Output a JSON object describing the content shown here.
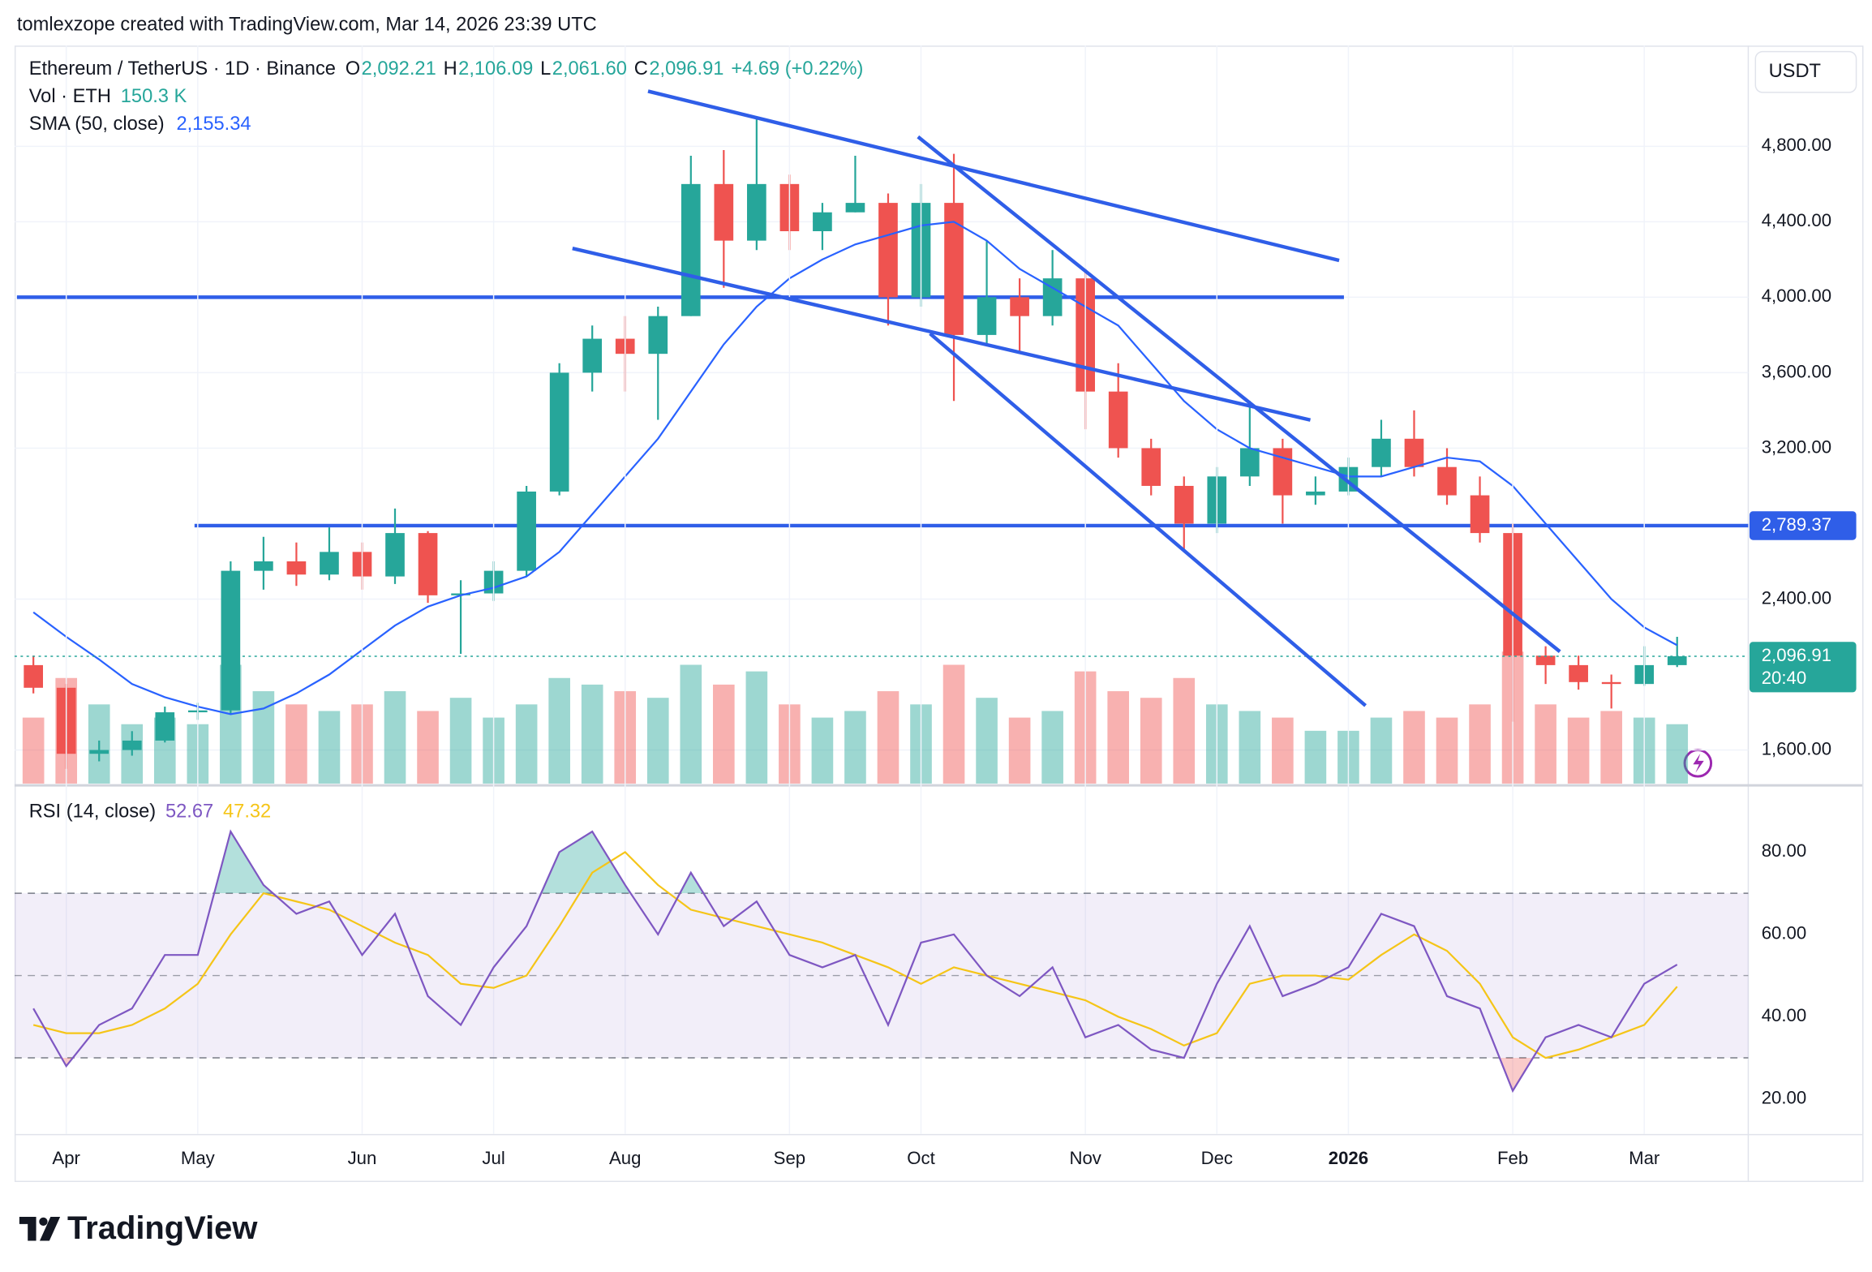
{
  "header": {
    "watermark": "tomlexzope created with TradingView.com, Mar 14, 2026 23:39 UTC"
  },
  "footer": {
    "logo": "TradingView"
  },
  "chart_data": [
    {
      "type": "candlestick",
      "title": "Ethereum / TetherUS · 1D · Binance",
      "ohlc_legend": [
        [
          "O",
          "2,092.21"
        ],
        [
          "H",
          "2,106.09"
        ],
        [
          "L",
          "2,061.60"
        ],
        [
          "C",
          "2,096.91"
        ]
      ],
      "change": "+4.69 (+0.22%)",
      "currency": "USDT",
      "categories": [
        null,
        "Apr",
        null,
        null,
        null,
        "May",
        null,
        null,
        null,
        null,
        "Jun",
        null,
        null,
        null,
        "Jul",
        null,
        null,
        null,
        "Aug",
        null,
        null,
        null,
        null,
        "Sep",
        null,
        null,
        null,
        "Oct",
        null,
        null,
        null,
        null,
        "Nov",
        null,
        null,
        null,
        "Dec",
        null,
        null,
        null,
        "2026",
        null,
        null,
        null,
        null,
        "Feb",
        null,
        null,
        null,
        "Mar",
        null
      ],
      "open": [
        2050,
        1930,
        1580,
        1600,
        1650,
        1800,
        1810,
        2550,
        2600,
        2530,
        2650,
        2520,
        2750,
        2420,
        2430,
        2550,
        2970,
        3600,
        3780,
        3700,
        3900,
        4600,
        4300,
        4600,
        4350,
        4450,
        4500,
        4000,
        4500,
        3800,
        4000,
        3900,
        4100,
        3500,
        3200,
        3000,
        2800,
        3050,
        3200,
        2950,
        2970,
        3100,
        3250,
        3100,
        2950,
        2750,
        2100,
        2050,
        1960,
        1950,
        2050
      ],
      "high": [
        2100,
        1950,
        1650,
        1700,
        1830,
        1850,
        2600,
        2730,
        2700,
        2780,
        2700,
        2880,
        2760,
        2500,
        2600,
        3000,
        3650,
        3850,
        3900,
        3950,
        4750,
        4780,
        4950,
        4650,
        4500,
        4750,
        4550,
        4600,
        4760,
        4300,
        4100,
        4250,
        4150,
        3650,
        3250,
        3050,
        3100,
        3450,
        3250,
        3050,
        3150,
        3350,
        3400,
        3200,
        3050,
        2800,
        2150,
        2100,
        2000,
        2150,
        2200
      ],
      "low": [
        1900,
        1500,
        1540,
        1570,
        1640,
        1760,
        1790,
        2450,
        2470,
        2500,
        2450,
        2480,
        2380,
        2110,
        2390,
        2520,
        2950,
        3500,
        3500,
        3350,
        3900,
        4050,
        4250,
        4250,
        4250,
        4450,
        3850,
        3950,
        3450,
        3750,
        3700,
        3850,
        3300,
        3150,
        2950,
        2650,
        2750,
        3000,
        2800,
        2900,
        2950,
        3050,
        3050,
        2900,
        2700,
        1750,
        1950,
        1920,
        1820,
        1940,
        2040
      ],
      "close": [
        1930,
        1580,
        1600,
        1650,
        1800,
        1810,
        2550,
        2600,
        2530,
        2650,
        2520,
        2750,
        2420,
        2430,
        2550,
        2970,
        3600,
        3780,
        3700,
        3900,
        4600,
        4300,
        4600,
        4350,
        4450,
        4500,
        4000,
        4500,
        3800,
        4000,
        3900,
        4100,
        3500,
        3200,
        3000,
        2800,
        3050,
        3200,
        2950,
        2970,
        3100,
        3250,
        3100,
        2950,
        2750,
        2100,
        2050,
        1960,
        1950,
        2050,
        2096.91
      ],
      "up_color": "#26a69a",
      "down_color": "#ef5350",
      "volume": {
        "name": "Vol · ETH",
        "last": "150.3 K",
        "values": [
          500,
          800,
          600,
          450,
          500,
          450,
          900,
          700,
          600,
          550,
          600,
          700,
          550,
          650,
          500,
          600,
          800,
          750,
          700,
          650,
          900,
          750,
          850,
          600,
          500,
          550,
          700,
          600,
          900,
          650,
          500,
          550,
          850,
          700,
          650,
          800,
          600,
          550,
          500,
          400,
          400,
          500,
          550,
          500,
          600,
          1000,
          600,
          500,
          550,
          500,
          450
        ]
      },
      "sma": {
        "name": "SMA (50, close)",
        "last": "2,155.34",
        "color": "#2962ff",
        "values": [
          2330,
          2200,
          2080,
          1950,
          1880,
          1830,
          1790,
          1820,
          1900,
          2000,
          2130,
          2260,
          2360,
          2420,
          2460,
          2520,
          2650,
          2850,
          3050,
          3250,
          3500,
          3750,
          3950,
          4100,
          4200,
          4280,
          4330,
          4380,
          4400,
          4300,
          4150,
          4050,
          3950,
          3850,
          3650,
          3450,
          3300,
          3200,
          3150,
          3100,
          3050,
          3050,
          3100,
          3150,
          3130,
          3000,
          2800,
          2600,
          2400,
          2250,
          2155.34
        ]
      },
      "ylim": [
        1422,
        5321
      ],
      "yticks": [
        {
          "value": 1600,
          "label": "1,600.00"
        },
        {
          "value": 2400,
          "label": "2,400.00"
        },
        {
          "value": 3200,
          "label": "3,200.00"
        },
        {
          "value": 3600,
          "label": "3,600.00"
        },
        {
          "value": 4000,
          "label": "4,000.00"
        },
        {
          "value": 4400,
          "label": "4,400.00"
        },
        {
          "value": 4800,
          "label": "4,800.00"
        }
      ],
      "levels": [
        4000,
        {
          "value": 2789.37,
          "label": "2,789.37"
        }
      ],
      "level_color": "#2f5ee8",
      "last_price": {
        "value": 2096.91,
        "label": "2,096.91"
      },
      "countdown": "20:40",
      "grid": true
    },
    {
      "type": "line",
      "title": "RSI (14, close)",
      "series": [
        {
          "color": "#7e57c2",
          "last": "52.67",
          "values": [
            42,
            28,
            38,
            42,
            55,
            55,
            85,
            72,
            65,
            68,
            55,
            65,
            45,
            38,
            52,
            62,
            80,
            85,
            72,
            60,
            75,
            62,
            68,
            55,
            52,
            55,
            38,
            58,
            60,
            50,
            45,
            52,
            35,
            38,
            32,
            30,
            48,
            62,
            45,
            48,
            52,
            65,
            62,
            45,
            42,
            22,
            35,
            38,
            35,
            48,
            52.67
          ]
        },
        {
          "color": "#f5c518",
          "last": "47.32",
          "values": [
            38,
            36,
            36,
            38,
            42,
            48,
            60,
            70,
            68,
            66,
            62,
            58,
            55,
            48,
            47,
            50,
            62,
            75,
            80,
            72,
            66,
            64,
            62,
            60,
            58,
            55,
            52,
            48,
            52,
            50,
            48,
            46,
            44,
            40,
            37,
            33,
            36,
            48,
            50,
            50,
            49,
            55,
            60,
            56,
            48,
            35,
            30,
            32,
            35,
            38,
            47.32
          ]
        }
      ],
      "ylim": [
        11.5,
        94.6
      ],
      "yticks": [
        {
          "value": 20,
          "label": "20.00"
        },
        {
          "value": 40,
          "label": "40.00"
        },
        {
          "value": 60,
          "label": "60.00"
        },
        {
          "value": 80,
          "label": "80.00"
        }
      ],
      "band": [
        30,
        70
      ],
      "midline": 50
    }
  ]
}
